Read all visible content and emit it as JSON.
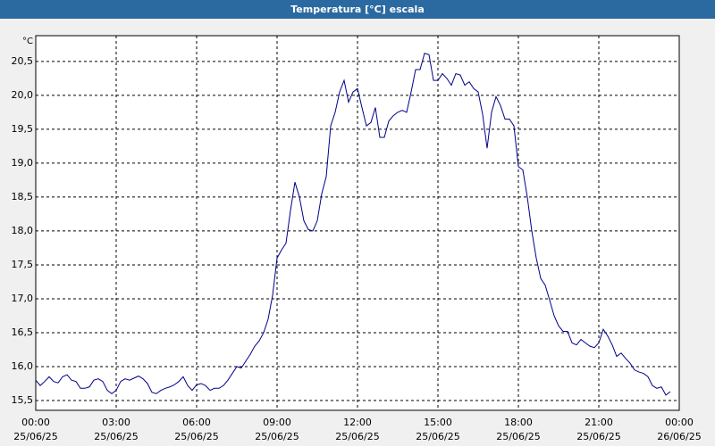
{
  "chart_data": {
    "type": "line",
    "title": "Temperatura [°C] escala",
    "y_unit": "°C",
    "x": [
      0,
      10,
      20,
      30,
      40,
      50,
      60,
      70,
      80,
      90,
      100,
      110,
      120,
      130,
      140,
      150,
      160,
      170,
      180,
      190,
      200,
      210,
      220,
      230,
      240,
      250,
      260,
      270,
      280,
      290,
      300,
      310,
      320,
      330,
      340,
      350,
      360,
      370,
      380,
      390,
      400,
      410,
      420,
      430,
      440,
      450,
      460,
      470,
      480,
      490,
      500,
      510,
      520,
      530,
      540,
      550,
      560,
      570,
      580,
      590,
      600,
      610,
      620,
      630,
      640,
      650,
      660,
      670,
      680,
      690,
      700,
      710,
      720,
      730,
      740,
      750,
      760,
      770,
      780,
      790,
      800,
      810,
      820,
      830,
      840,
      850,
      860,
      870,
      880,
      890,
      900,
      910,
      920,
      930,
      940,
      950,
      960,
      970,
      980,
      990,
      1000,
      1010,
      1020,
      1030,
      1040,
      1050,
      1060,
      1070,
      1080,
      1090,
      1100,
      1110,
      1120,
      1130,
      1140,
      1150,
      1160,
      1170,
      1180,
      1190,
      1200,
      1210,
      1220,
      1230,
      1240,
      1250,
      1260,
      1270,
      1280,
      1290,
      1300,
      1310,
      1320,
      1330,
      1340,
      1350,
      1360,
      1370,
      1380,
      1390,
      1400,
      1410,
      1420
    ],
    "series": [
      {
        "name": "Temperatura",
        "color": "#00008b",
        "values": [
          15.8,
          15.72,
          15.78,
          15.85,
          15.78,
          15.76,
          15.85,
          15.88,
          15.8,
          15.78,
          15.68,
          15.68,
          15.7,
          15.8,
          15.82,
          15.78,
          15.65,
          15.6,
          15.65,
          15.78,
          15.82,
          15.8,
          15.83,
          15.86,
          15.82,
          15.75,
          15.62,
          15.6,
          15.65,
          15.68,
          15.7,
          15.73,
          15.78,
          15.85,
          15.72,
          15.65,
          15.73,
          15.75,
          15.72,
          15.65,
          15.68,
          15.68,
          15.72,
          15.8,
          15.9,
          16.0,
          15.98,
          16.08,
          16.18,
          16.3,
          16.38,
          16.5,
          16.7,
          17.05,
          17.6,
          17.72,
          17.82,
          18.3,
          18.72,
          18.5,
          18.15,
          18.02,
          18.0,
          18.15,
          18.55,
          18.8,
          19.55,
          19.75,
          20.05,
          20.22,
          19.9,
          20.05,
          20.1,
          19.82,
          19.55,
          19.6,
          19.82,
          19.38,
          19.38,
          19.62,
          19.7,
          19.75,
          19.78,
          19.75,
          20.05,
          20.38,
          20.38,
          20.62,
          20.6,
          20.22,
          20.22,
          20.32,
          20.25,
          20.15,
          20.32,
          20.3,
          20.15,
          20.2,
          20.1,
          20.05,
          19.72,
          19.22,
          19.75,
          19.98,
          19.85,
          19.65,
          19.65,
          19.55,
          18.95,
          18.9,
          18.5,
          18.0,
          17.6,
          17.3,
          17.2,
          16.98,
          16.75,
          16.6,
          16.52,
          16.52,
          16.35,
          16.32,
          16.4,
          16.35,
          16.3,
          16.28,
          16.35,
          16.55,
          16.45,
          16.32,
          16.15,
          16.2,
          16.12,
          16.05,
          15.95,
          15.92,
          15.9,
          15.85,
          15.72,
          15.68,
          15.7,
          15.58,
          15.63
        ]
      }
    ],
    "xlim": [
      0,
      1440
    ],
    "ylim": [
      15.355,
      20.88
    ],
    "xticks": [
      {
        "value": 0,
        "label": "00:00",
        "date": "25/06/25"
      },
      {
        "value": 180,
        "label": "03:00",
        "date": "25/06/25"
      },
      {
        "value": 360,
        "label": "06:00",
        "date": "25/06/25"
      },
      {
        "value": 540,
        "label": "09:00",
        "date": "25/06/25"
      },
      {
        "value": 720,
        "label": "12:00",
        "date": "25/06/25"
      },
      {
        "value": 900,
        "label": "15:00",
        "date": "25/06/25"
      },
      {
        "value": 1080,
        "label": "18:00",
        "date": "25/06/25"
      },
      {
        "value": 1260,
        "label": "21:00",
        "date": "25/06/25"
      },
      {
        "value": 1440,
        "label": "00:00",
        "date": "26/06/25"
      }
    ],
    "yticks": [
      {
        "value": 15.5,
        "label": "15,5"
      },
      {
        "value": 16,
        "label": "16,0"
      },
      {
        "value": 16.5,
        "label": "16,5"
      },
      {
        "value": 17,
        "label": "17,0"
      },
      {
        "value": 17.5,
        "label": "17,5"
      },
      {
        "value": 18,
        "label": "18,0"
      },
      {
        "value": 18.5,
        "label": "18,5"
      },
      {
        "value": 19,
        "label": "19,0"
      },
      {
        "value": 19.5,
        "label": "19,5"
      },
      {
        "value": 20,
        "label": "20,0"
      },
      {
        "value": 20.5,
        "label": "20,5"
      }
    ],
    "grid": true
  }
}
